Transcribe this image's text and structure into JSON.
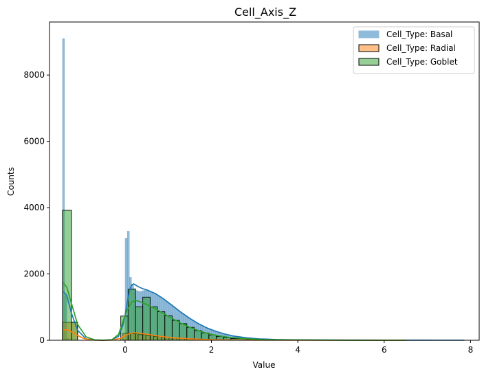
{
  "chart_data": {
    "type": "histogram",
    "title": "Cell_Axis_Z",
    "xlabel": "Value",
    "ylabel": "Counts",
    "xlim": [
      -1.75,
      8.2
    ],
    "ylim": [
      0,
      9600
    ],
    "xticks": [
      0,
      2,
      4,
      6,
      8
    ],
    "yticks": [
      0,
      2000,
      4000,
      6000,
      8000
    ],
    "grid": false,
    "legend_position": "top-right",
    "series": [
      {
        "name": "Cell_Type: Basal",
        "color": "#1f77b4",
        "hist_edgecolor": "#4a7fae",
        "style": "fine bins, no bar outline",
        "bins": [
          [
            -1.45,
            -1.4,
            9100
          ],
          [
            -1.4,
            -1.35,
            1350
          ],
          [
            -1.35,
            -1.3,
            60
          ],
          [
            0.0,
            0.05,
            3080
          ],
          [
            0.05,
            0.1,
            3290
          ],
          [
            0.1,
            0.15,
            1900
          ],
          [
            0.15,
            0.2,
            1700
          ],
          [
            0.2,
            0.25,
            1560
          ],
          [
            0.25,
            0.3,
            1500
          ],
          [
            0.3,
            0.35,
            1480
          ],
          [
            0.35,
            0.4,
            1480
          ],
          [
            0.4,
            0.45,
            1500
          ],
          [
            0.45,
            0.5,
            1510
          ],
          [
            0.5,
            0.55,
            1500
          ],
          [
            0.55,
            0.6,
            1480
          ],
          [
            0.6,
            0.65,
            1450
          ],
          [
            0.65,
            0.7,
            1420
          ],
          [
            0.7,
            0.75,
            1390
          ],
          [
            0.75,
            0.8,
            1350
          ],
          [
            0.8,
            0.85,
            1310
          ],
          [
            0.85,
            0.9,
            1270
          ],
          [
            0.9,
            0.95,
            1220
          ],
          [
            0.95,
            1.0,
            1170
          ],
          [
            1.0,
            1.05,
            1120
          ],
          [
            1.05,
            1.1,
            1070
          ],
          [
            1.1,
            1.15,
            1020
          ],
          [
            1.15,
            1.2,
            970
          ],
          [
            1.2,
            1.25,
            920
          ],
          [
            1.25,
            1.3,
            870
          ],
          [
            1.3,
            1.35,
            820
          ],
          [
            1.35,
            1.4,
            775
          ],
          [
            1.4,
            1.45,
            730
          ],
          [
            1.45,
            1.5,
            685
          ],
          [
            1.5,
            1.55,
            640
          ],
          [
            1.55,
            1.6,
            600
          ],
          [
            1.6,
            1.65,
            560
          ],
          [
            1.65,
            1.7,
            520
          ],
          [
            1.7,
            1.75,
            485
          ],
          [
            1.75,
            1.8,
            450
          ],
          [
            1.8,
            1.85,
            415
          ],
          [
            1.85,
            1.9,
            385
          ],
          [
            1.9,
            1.95,
            355
          ],
          [
            1.95,
            2.0,
            325
          ],
          [
            2.0,
            2.05,
            300
          ],
          [
            2.05,
            2.1,
            275
          ],
          [
            2.1,
            2.15,
            250
          ],
          [
            2.15,
            2.2,
            230
          ],
          [
            2.2,
            2.25,
            210
          ],
          [
            2.25,
            2.3,
            190
          ],
          [
            2.3,
            2.35,
            175
          ],
          [
            2.35,
            2.4,
            160
          ],
          [
            2.4,
            2.45,
            145
          ],
          [
            2.45,
            2.5,
            130
          ],
          [
            2.5,
            2.55,
            118
          ],
          [
            2.55,
            2.6,
            106
          ],
          [
            2.6,
            2.65,
            95
          ],
          [
            2.65,
            2.7,
            86
          ],
          [
            2.7,
            2.75,
            78
          ],
          [
            2.75,
            2.8,
            70
          ],
          [
            2.8,
            2.85,
            63
          ],
          [
            2.85,
            2.9,
            57
          ],
          [
            2.9,
            2.95,
            51
          ],
          [
            2.95,
            3.0,
            46
          ],
          [
            3.0,
            3.2,
            38
          ],
          [
            3.2,
            3.4,
            28
          ],
          [
            3.4,
            3.6,
            20
          ],
          [
            3.6,
            3.8,
            15
          ],
          [
            3.8,
            4.0,
            11
          ],
          [
            4.0,
            4.5,
            7
          ],
          [
            4.5,
            5.0,
            4
          ],
          [
            5.0,
            6.0,
            2
          ],
          [
            6.0,
            7.85,
            1
          ]
        ],
        "kde": [
          [
            -1.42,
            1450
          ],
          [
            -1.35,
            1350
          ],
          [
            -1.25,
            850
          ],
          [
            -1.1,
            300
          ],
          [
            -0.9,
            40
          ],
          [
            -0.7,
            5
          ],
          [
            -0.5,
            0
          ],
          [
            -0.3,
            15
          ],
          [
            -0.15,
            120
          ],
          [
            -0.05,
            450
          ],
          [
            0.0,
            750
          ],
          [
            0.05,
            1150
          ],
          [
            0.1,
            1480
          ],
          [
            0.15,
            1660
          ],
          [
            0.2,
            1700
          ],
          [
            0.3,
            1620
          ],
          [
            0.4,
            1560
          ],
          [
            0.5,
            1520
          ],
          [
            0.7,
            1410
          ],
          [
            0.9,
            1240
          ],
          [
            1.1,
            1040
          ],
          [
            1.3,
            840
          ],
          [
            1.5,
            660
          ],
          [
            1.7,
            500
          ],
          [
            1.9,
            370
          ],
          [
            2.1,
            270
          ],
          [
            2.3,
            190
          ],
          [
            2.5,
            130
          ],
          [
            2.8,
            75
          ],
          [
            3.1,
            42
          ],
          [
            3.5,
            22
          ],
          [
            4.0,
            12
          ],
          [
            5.0,
            5
          ],
          [
            6.0,
            3
          ],
          [
            7.0,
            2
          ],
          [
            7.85,
            1
          ]
        ]
      },
      {
        "name": "Cell_Type: Radial",
        "color": "#ff7f0e",
        "style": "wide bins, black outline",
        "bins": [
          [
            -1.45,
            -1.1,
            540
          ],
          [
            -0.05,
            0.12,
            210
          ],
          [
            0.12,
            0.3,
            200
          ],
          [
            0.3,
            0.48,
            170
          ],
          [
            0.48,
            0.66,
            140
          ],
          [
            0.66,
            0.84,
            115
          ],
          [
            0.84,
            1.02,
            95
          ],
          [
            1.02,
            1.2,
            78
          ],
          [
            1.2,
            1.38,
            62
          ],
          [
            1.38,
            1.56,
            48
          ],
          [
            1.56,
            1.74,
            36
          ],
          [
            1.74,
            1.92,
            26
          ],
          [
            1.92,
            2.1,
            18
          ],
          [
            2.1,
            2.28,
            12
          ],
          [
            2.28,
            2.46,
            8
          ],
          [
            2.46,
            2.8,
            5
          ],
          [
            2.8,
            3.5,
            3
          ]
        ],
        "kde": [
          [
            -1.42,
            320
          ],
          [
            -1.3,
            300
          ],
          [
            -1.15,
            180
          ],
          [
            -0.95,
            50
          ],
          [
            -0.75,
            8
          ],
          [
            -0.55,
            0
          ],
          [
            -0.3,
            5
          ],
          [
            -0.1,
            60
          ],
          [
            0.0,
            140
          ],
          [
            0.1,
            200
          ],
          [
            0.2,
            225
          ],
          [
            0.3,
            215
          ],
          [
            0.5,
            180
          ],
          [
            0.7,
            140
          ],
          [
            0.9,
            105
          ],
          [
            1.1,
            78
          ],
          [
            1.3,
            58
          ],
          [
            1.5,
            42
          ],
          [
            1.8,
            26
          ],
          [
            2.1,
            15
          ],
          [
            2.5,
            8
          ],
          [
            3.0,
            4
          ],
          [
            4.0,
            2
          ],
          [
            5.0,
            1
          ],
          [
            6.5,
            0
          ]
        ]
      },
      {
        "name": "Cell_Type: Goblet",
        "color": "#2ca02c",
        "style": "wide bins, black outline",
        "bins": [
          [
            -1.45,
            -1.24,
            3920
          ],
          [
            -1.24,
            -1.1,
            550
          ],
          [
            -0.1,
            0.07,
            730
          ],
          [
            0.07,
            0.24,
            1540
          ],
          [
            0.24,
            0.41,
            1010
          ],
          [
            0.41,
            0.58,
            1300
          ],
          [
            0.58,
            0.75,
            1010
          ],
          [
            0.75,
            0.92,
            860
          ],
          [
            0.92,
            1.09,
            740
          ],
          [
            1.09,
            1.26,
            600
          ],
          [
            1.26,
            1.43,
            500
          ],
          [
            1.43,
            1.6,
            390
          ],
          [
            1.6,
            1.77,
            290
          ],
          [
            1.77,
            1.94,
            220
          ],
          [
            1.94,
            2.11,
            160
          ],
          [
            2.11,
            2.28,
            115
          ],
          [
            2.28,
            2.45,
            80
          ],
          [
            2.45,
            2.8,
            50
          ],
          [
            2.8,
            3.5,
            25
          ],
          [
            3.5,
            4.5,
            8
          ],
          [
            4.5,
            6.5,
            2
          ]
        ],
        "kde": [
          [
            -1.42,
            1720
          ],
          [
            -1.35,
            1600
          ],
          [
            -1.25,
            1150
          ],
          [
            -1.1,
            480
          ],
          [
            -0.9,
            100
          ],
          [
            -0.7,
            12
          ],
          [
            -0.5,
            0
          ],
          [
            -0.3,
            20
          ],
          [
            -0.15,
            180
          ],
          [
            -0.05,
            560
          ],
          [
            0.05,
            920
          ],
          [
            0.15,
            1150
          ],
          [
            0.25,
            1200
          ],
          [
            0.35,
            1160
          ],
          [
            0.5,
            1080
          ],
          [
            0.7,
            950
          ],
          [
            0.9,
            800
          ],
          [
            1.1,
            650
          ],
          [
            1.3,
            510
          ],
          [
            1.5,
            390
          ],
          [
            1.7,
            290
          ],
          [
            1.9,
            210
          ],
          [
            2.1,
            150
          ],
          [
            2.4,
            90
          ],
          [
            2.8,
            45
          ],
          [
            3.2,
            22
          ],
          [
            3.8,
            10
          ],
          [
            4.5,
            5
          ],
          [
            5.5,
            2
          ],
          [
            6.5,
            1
          ]
        ]
      }
    ]
  }
}
